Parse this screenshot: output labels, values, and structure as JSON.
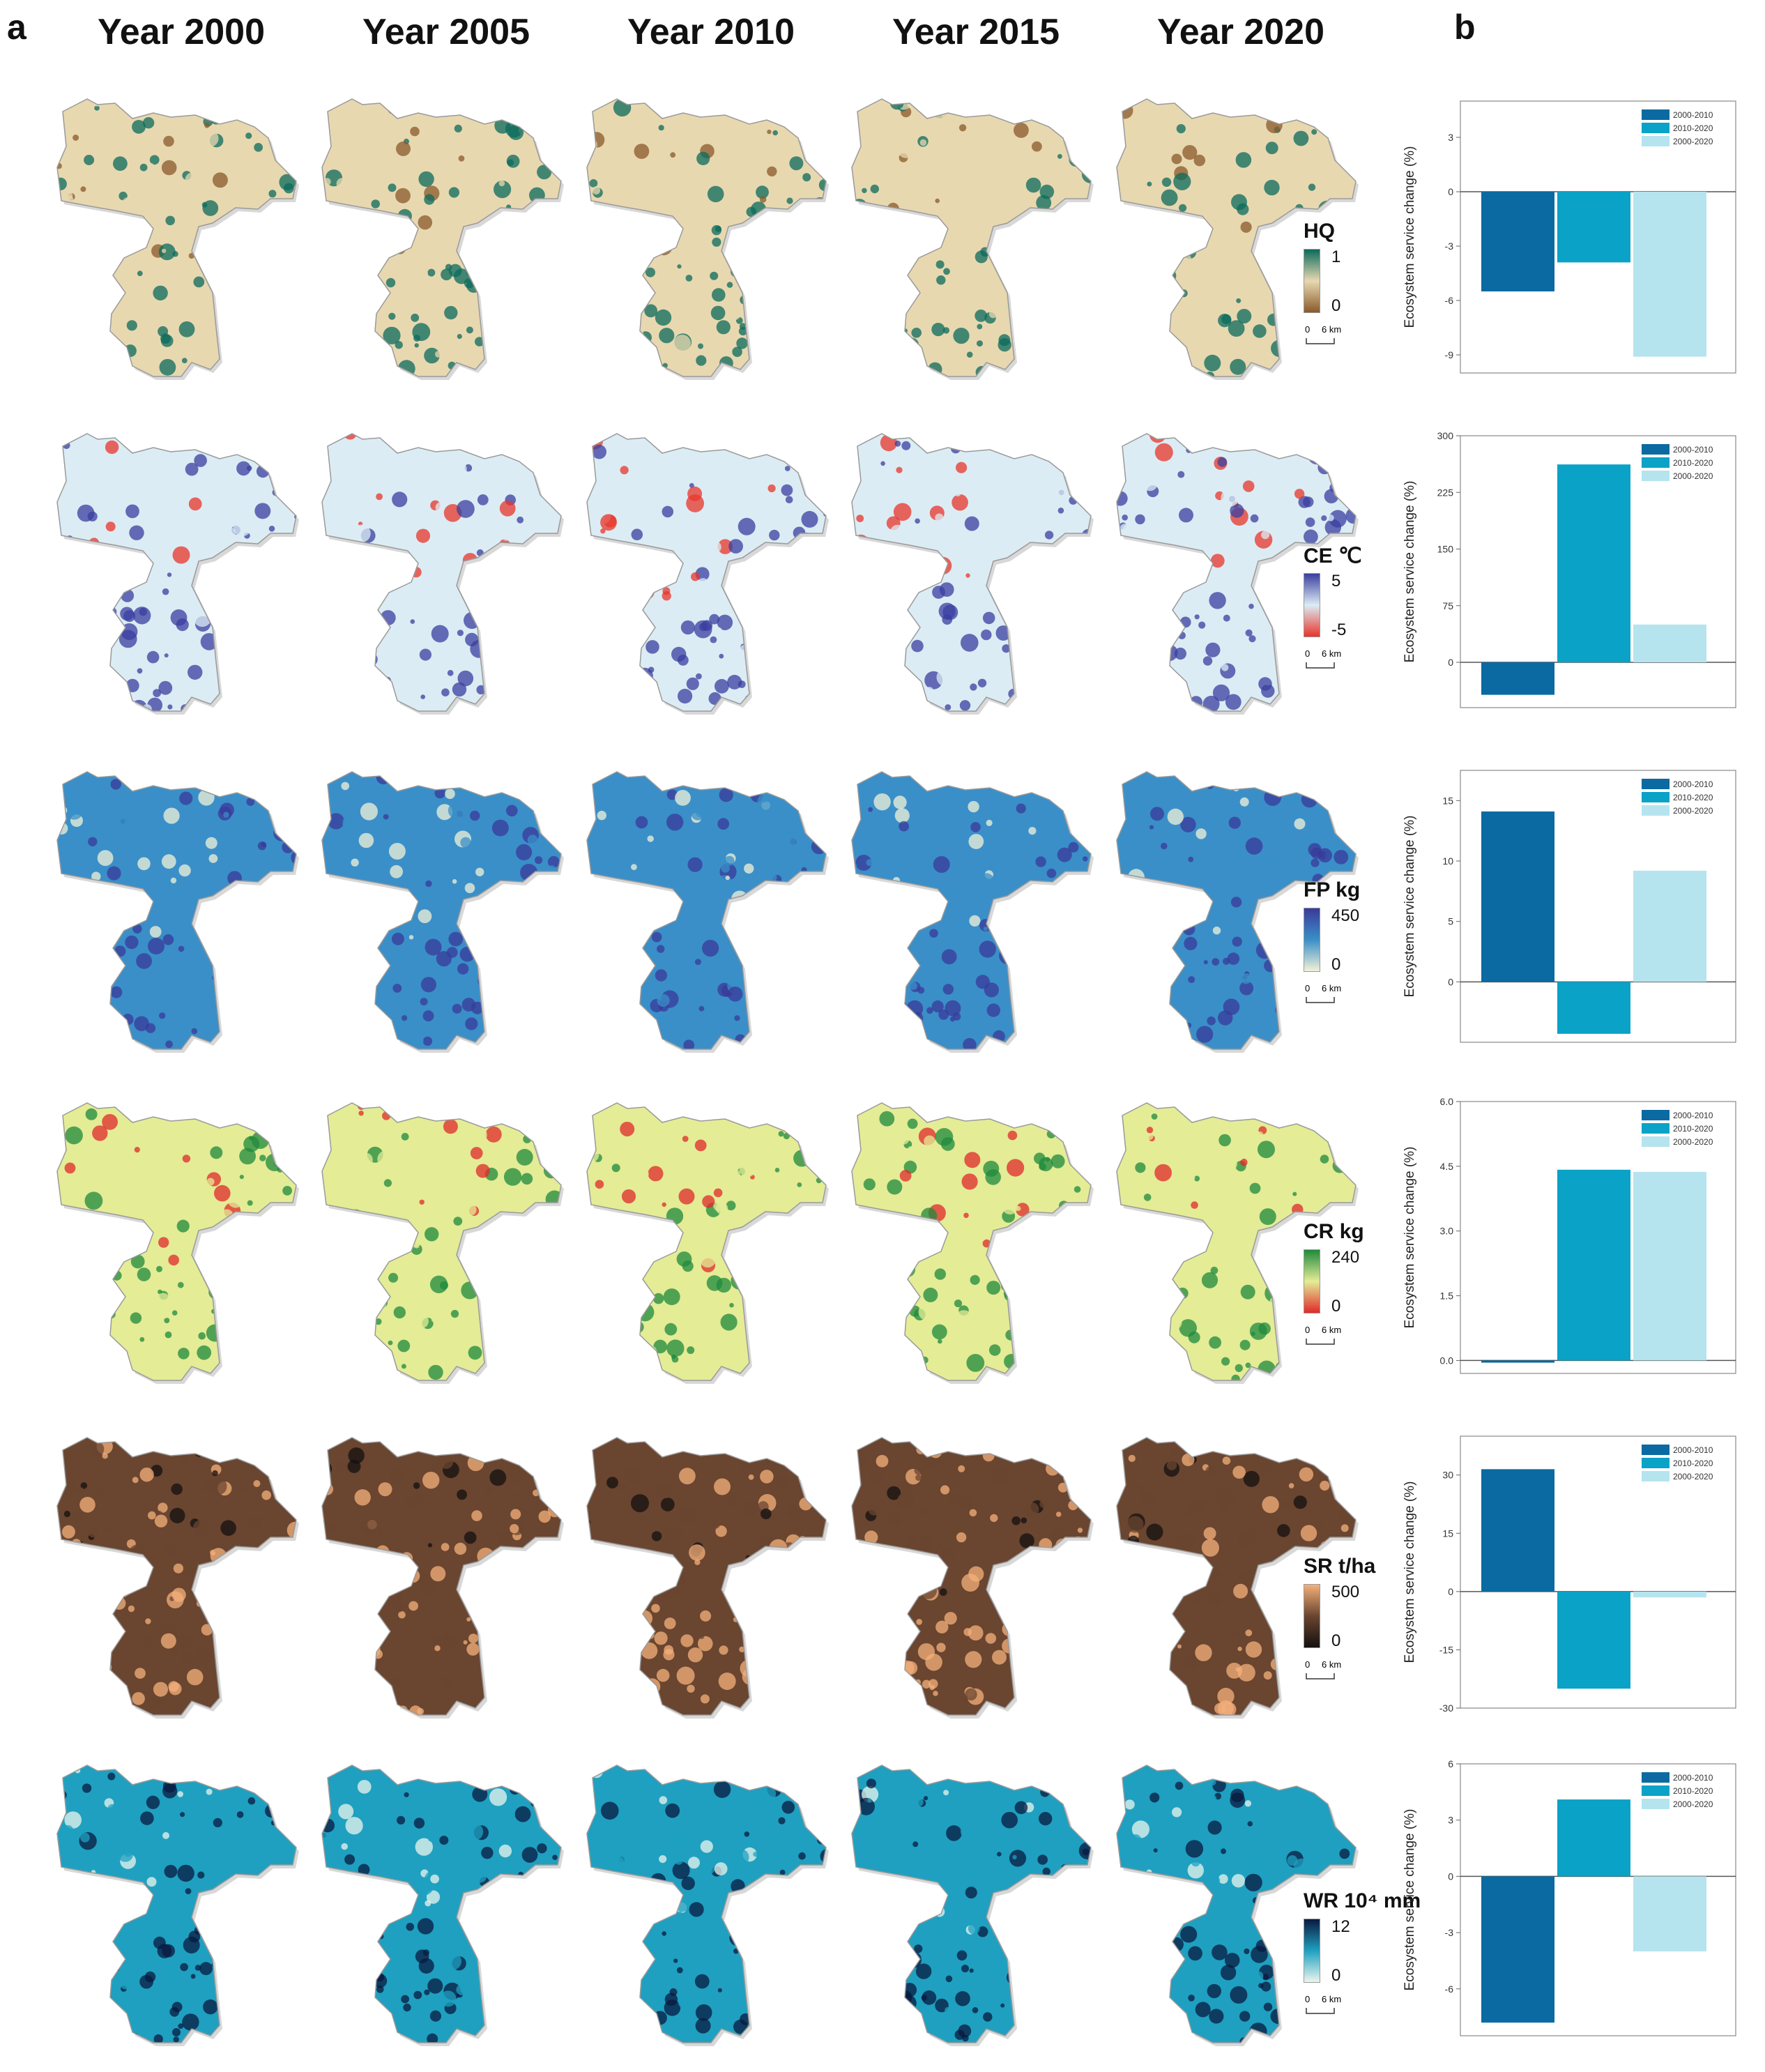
{
  "panel_a_label": "a",
  "panel_b_label": "b",
  "years": [
    "Year 2000",
    "Year 2005",
    "Year 2010",
    "Year 2015",
    "Year 2020"
  ],
  "scale_labels": [
    "0",
    "6 km"
  ],
  "map_rows": [
    {
      "id": "HQ",
      "title": "HQ",
      "unit": "",
      "max": "1",
      "min": "0",
      "colors": {
        "low": "#8a5a2b",
        "mid": "#e8d8b0",
        "high": "#0b6b5c"
      }
    },
    {
      "id": "CE",
      "title": "CE",
      "unit": "℃",
      "max": "5",
      "min": "-5",
      "colors": {
        "low": "#e8352b",
        "mid": "#dcecf4",
        "high": "#3a3fa0"
      }
    },
    {
      "id": "FP",
      "title": "FP",
      "unit": "kg",
      "max": "450",
      "min": "0",
      "colors": {
        "low": "#f2f2d8",
        "mid": "#3a8fc8",
        "high": "#3a3a9a"
      }
    },
    {
      "id": "CR",
      "title": "CR",
      "unit": "kg",
      "max": "240",
      "min": "0",
      "colors": {
        "low": "#e02a2a",
        "mid": "#e4ec96",
        "high": "#1f8a3c"
      }
    },
    {
      "id": "SR",
      "title": "SR",
      "unit": "t/ha",
      "max": "500",
      "min": "0",
      "colors": {
        "low": "#141010",
        "mid": "#6a4530",
        "high": "#f4b07a"
      }
    },
    {
      "id": "WR",
      "title": "WR 10⁴",
      "unit": "mm",
      "max": "12",
      "min": "0",
      "colors": {
        "low": "#eaf6ee",
        "mid": "#1fa0c0",
        "high": "#0a1a40"
      }
    }
  ],
  "chart_data": [
    {
      "type": "bar",
      "service": "HQ",
      "ylabel": "Ecosystem service change (%)",
      "categories": [
        "2000-2010",
        "2010-2020",
        "2000-2020"
      ],
      "values": [
        -5.5,
        -3.9,
        -9.1
      ],
      "ylim": [
        -10,
        5
      ],
      "yticks": [
        "3",
        "0",
        "-3",
        "-6",
        "-9"
      ],
      "ytick_values": [
        3,
        0,
        -3,
        -6,
        -9
      ],
      "colors": [
        "#0a6aa1",
        "#0aa2c7",
        "#b5e4ef"
      ]
    },
    {
      "type": "bar",
      "service": "CE",
      "ylabel": "Ecosystem service change (%)",
      "categories": [
        "2000-2010",
        "2010-2020",
        "2000-2020"
      ],
      "values": [
        -43,
        262,
        50
      ],
      "ylim": [
        -60,
        300
      ],
      "yticks": [
        "300",
        "225",
        "150",
        "75",
        "0"
      ],
      "ytick_values": [
        300,
        225,
        150,
        75,
        0
      ],
      "colors": [
        "#0a6aa1",
        "#0aa2c7",
        "#b5e4ef"
      ]
    },
    {
      "type": "bar",
      "service": "FP",
      "ylabel": "Ecosystem service change (%)",
      "categories": [
        "2000-2010",
        "2010-2020",
        "2000-2020"
      ],
      "values": [
        14.1,
        -4.3,
        9.2
      ],
      "ylim": [
        -5,
        17.5
      ],
      "yticks": [
        "15",
        "10",
        "5",
        "0"
      ],
      "ytick_values": [
        15,
        10,
        5,
        0
      ],
      "colors": [
        "#0a6aa1",
        "#0aa2c7",
        "#b5e4ef"
      ]
    },
    {
      "type": "bar",
      "service": "CR",
      "ylabel": "Ecosystem service change (%)",
      "categories": [
        "2000-2010",
        "2010-2020",
        "2000-2020"
      ],
      "values": [
        -0.05,
        4.42,
        4.37
      ],
      "ylim": [
        -0.3,
        6.0
      ],
      "yticks": [
        "6.0",
        "4.5",
        "3.0",
        "1.5",
        "0.0"
      ],
      "ytick_values": [
        6.0,
        4.5,
        3.0,
        1.5,
        0.0
      ],
      "colors": [
        "#0a6aa1",
        "#0aa2c7",
        "#b5e4ef"
      ]
    },
    {
      "type": "bar",
      "service": "SR",
      "ylabel": "Ecosystem service change (%)",
      "categories": [
        "2000-2010",
        "2010-2020",
        "2000-2020"
      ],
      "values": [
        31.5,
        -25,
        -1.5
      ],
      "ylim": [
        -30,
        40
      ],
      "yticks": [
        "30",
        "15",
        "0",
        "-15",
        "-30"
      ],
      "ytick_values": [
        30,
        15,
        0,
        -15,
        -30
      ],
      "colors": [
        "#0a6aa1",
        "#0aa2c7",
        "#b5e4ef"
      ]
    },
    {
      "type": "bar",
      "service": "WR",
      "ylabel": "Ecosystem service change (%)",
      "categories": [
        "2000-2010",
        "2010-2020",
        "2000-2020"
      ],
      "values": [
        -7.8,
        4.1,
        -4.0
      ],
      "ylim": [
        -8.5,
        6
      ],
      "yticks": [
        "6",
        "3",
        "0",
        "-3",
        "-6"
      ],
      "ytick_values": [
        6,
        3,
        0,
        -3,
        -6
      ],
      "colors": [
        "#0a6aa1",
        "#0aa2c7",
        "#b5e4ef"
      ]
    }
  ]
}
